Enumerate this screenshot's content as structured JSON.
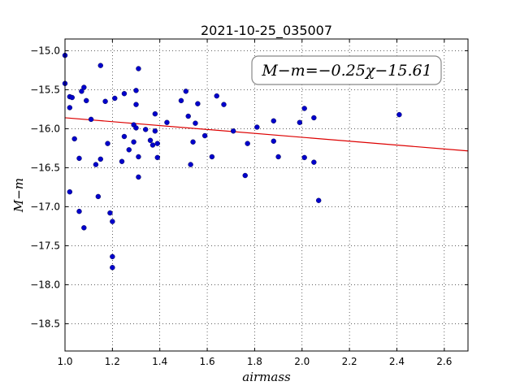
{
  "chart_data": {
    "type": "scatter",
    "title": "2021-10-25_035007",
    "xlabel": "airmass",
    "ylabel": "M−m",
    "xlim": [
      1.0,
      2.7
    ],
    "ylim": [
      -18.85,
      -14.85
    ],
    "x_ticks": [
      1.0,
      1.2,
      1.4,
      1.6,
      1.8,
      2.0,
      2.2,
      2.4,
      2.6
    ],
    "x_tick_labels": [
      "1.0",
      "1.2",
      "1.4",
      "1.6",
      "1.8",
      "2.0",
      "2.2",
      "2.4",
      "2.6"
    ],
    "y_ticks": [
      -15.0,
      -15.5,
      -16.0,
      -16.5,
      -17.0,
      -17.5,
      -18.0,
      -18.5
    ],
    "y_tick_labels": [
      "−15.0",
      "−15.5",
      "−16.0",
      "−16.5",
      "−17.0",
      "−17.5",
      "−18.0",
      "−18.5"
    ],
    "grid": true,
    "annotation": "M−m=−0.25χ−15.61",
    "point_color": "#0000cc",
    "fit_line": {
      "slope": -0.25,
      "intercept": -15.61,
      "color": "#dd0000"
    },
    "points": [
      [
        1.0,
        -15.06
      ],
      [
        1.0,
        -15.42
      ],
      [
        1.02,
        -15.59
      ],
      [
        1.03,
        -15.6
      ],
      [
        1.02,
        -15.73
      ],
      [
        1.04,
        -16.13
      ],
      [
        1.06,
        -16.38
      ],
      [
        1.02,
        -16.81
      ],
      [
        1.06,
        -17.06
      ],
      [
        1.08,
        -17.27
      ],
      [
        1.07,
        -15.52
      ],
      [
        1.08,
        -15.47
      ],
      [
        1.09,
        -15.64
      ],
      [
        1.11,
        -15.88
      ],
      [
        1.13,
        -16.46
      ],
      [
        1.14,
        -16.87
      ],
      [
        1.15,
        -15.19
      ],
      [
        1.15,
        -16.39
      ],
      [
        1.17,
        -15.65
      ],
      [
        1.18,
        -16.19
      ],
      [
        1.19,
        -17.08
      ],
      [
        1.2,
        -17.19
      ],
      [
        1.2,
        -17.64
      ],
      [
        1.2,
        -17.78
      ],
      [
        1.21,
        -15.61
      ],
      [
        1.24,
        -16.42
      ],
      [
        1.25,
        -16.1
      ],
      [
        1.25,
        -15.55
      ],
      [
        1.27,
        -16.27
      ],
      [
        1.29,
        -15.95
      ],
      [
        1.29,
        -16.17
      ],
      [
        1.3,
        -15.99
      ],
      [
        1.3,
        -15.51
      ],
      [
        1.3,
        -15.69
      ],
      [
        1.31,
        -15.23
      ],
      [
        1.31,
        -16.36
      ],
      [
        1.31,
        -16.62
      ],
      [
        1.34,
        -16.01
      ],
      [
        1.36,
        -16.15
      ],
      [
        1.37,
        -16.21
      ],
      [
        1.38,
        -15.81
      ],
      [
        1.38,
        -16.03
      ],
      [
        1.39,
        -16.19
      ],
      [
        1.39,
        -16.37
      ],
      [
        1.43,
        -15.92
      ],
      [
        1.49,
        -15.64
      ],
      [
        1.51,
        -15.52
      ],
      [
        1.52,
        -15.84
      ],
      [
        1.53,
        -16.46
      ],
      [
        1.54,
        -16.17
      ],
      [
        1.55,
        -15.93
      ],
      [
        1.56,
        -15.68
      ],
      [
        1.59,
        -16.09
      ],
      [
        1.62,
        -16.36
      ],
      [
        1.64,
        -15.58
      ],
      [
        1.67,
        -15.69
      ],
      [
        1.71,
        -16.03
      ],
      [
        1.76,
        -16.6
      ],
      [
        1.77,
        -16.19
      ],
      [
        1.81,
        -15.98
      ],
      [
        1.88,
        -15.9
      ],
      [
        1.88,
        -16.16
      ],
      [
        1.9,
        -16.36
      ],
      [
        1.99,
        -15.92
      ],
      [
        2.01,
        -15.74
      ],
      [
        2.01,
        -16.37
      ],
      [
        2.05,
        -15.86
      ],
      [
        2.05,
        -16.43
      ],
      [
        2.07,
        -16.92
      ],
      [
        2.41,
        -15.82
      ]
    ]
  }
}
